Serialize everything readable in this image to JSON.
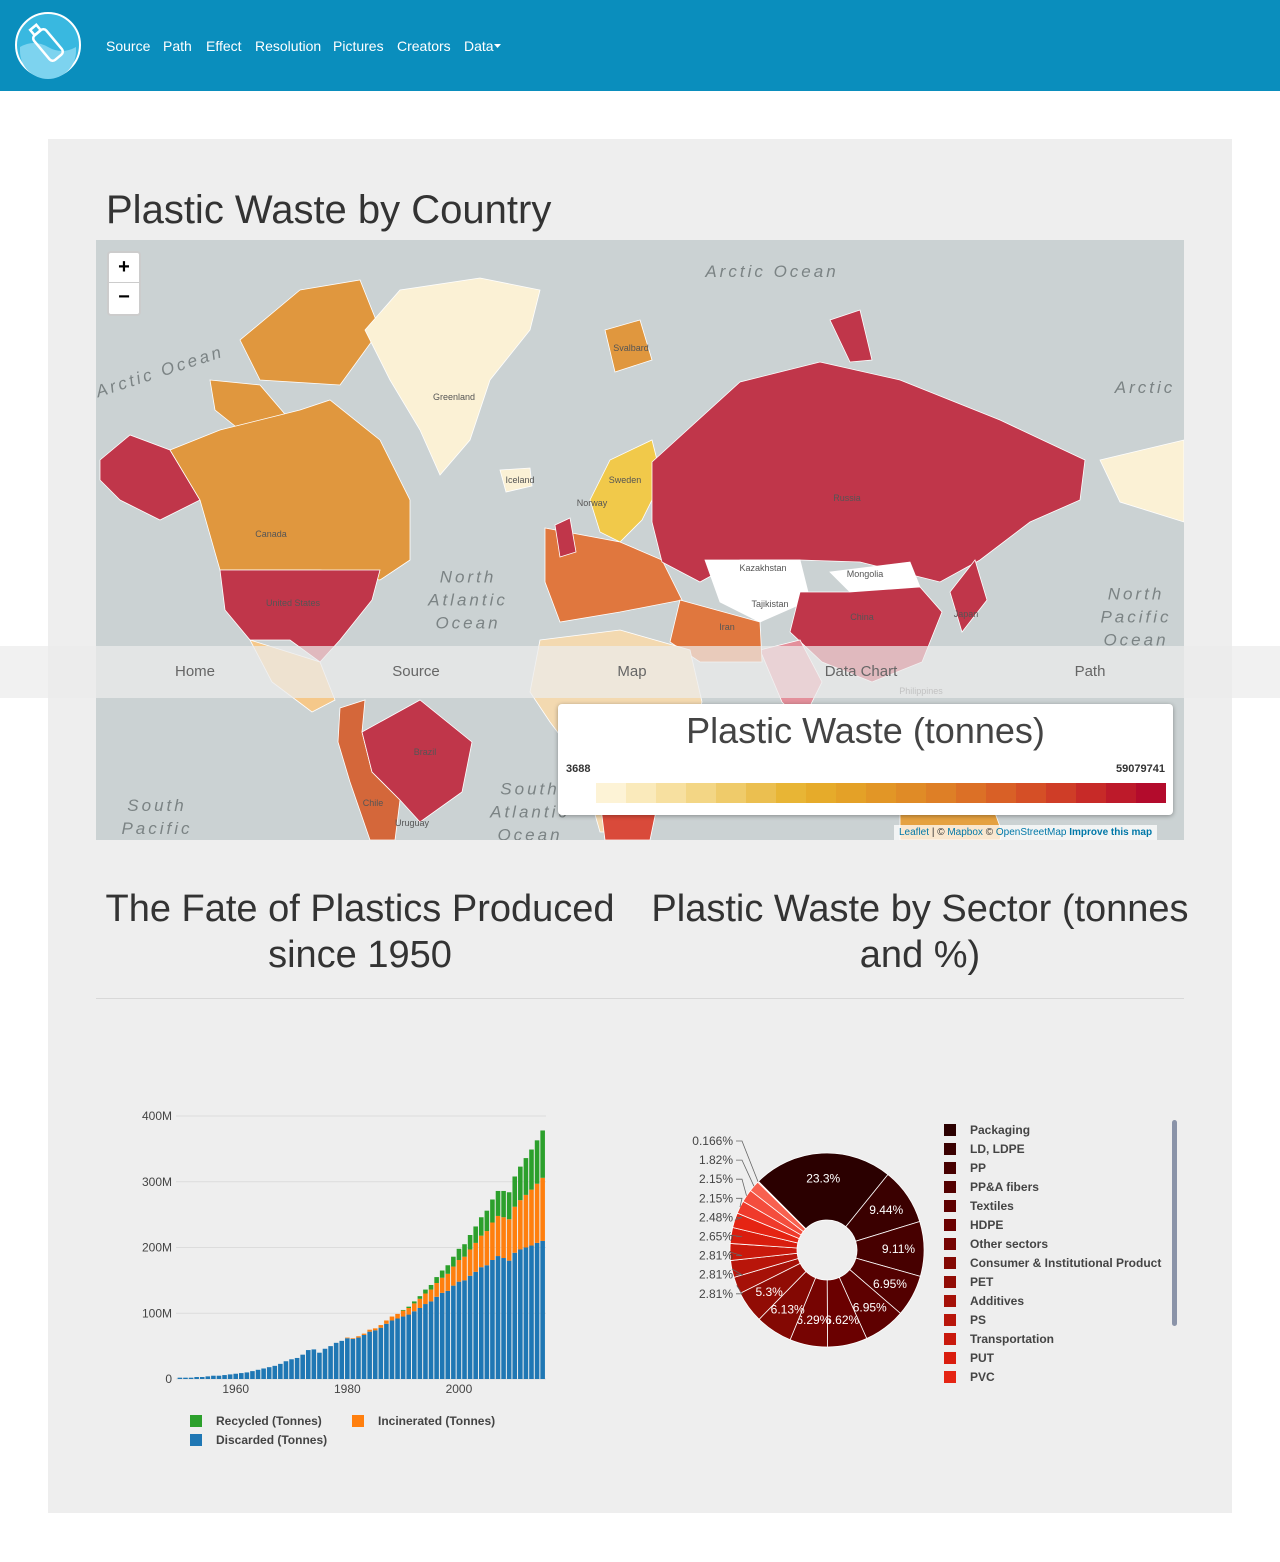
{
  "nav": {
    "items": [
      "Source",
      "Path",
      "Effect",
      "Resolution",
      "Pictures",
      "Creators",
      "Data"
    ]
  },
  "map": {
    "title": "Plastic Waste by Country",
    "zoom": {
      "in": "+",
      "out": "−"
    },
    "labels": [
      "Arctic Ocean",
      "Arctic Ocean",
      "Arctic",
      "Greenland",
      "Iceland",
      "Svalbard",
      "Norway",
      "Sweden",
      "Russia",
      "Kazakhstan",
      "Mongolia",
      "Tajikistan",
      "China",
      "Iran",
      "Japan",
      "Philippines",
      "Canada",
      "United States",
      "Brazil",
      "Chile",
      "Uruguay",
      "North Atlantic Ocean",
      "North Pacific Ocean",
      "South Atlantic Ocean",
      "South Pacific"
    ],
    "legend": {
      "title": "Plastic Waste (tonnes)",
      "min": 3688,
      "max": 59079741,
      "colors": [
        "#ffffff",
        "#fdf3d6",
        "#faeabb",
        "#f7e0a0",
        "#f3d685",
        "#efcb6a",
        "#ebbf50",
        "#e8b535",
        "#e6ab2a",
        "#e4a127",
        "#e29626",
        "#e08b26",
        "#de7f26",
        "#dc7026",
        "#d96026",
        "#d54f26",
        "#cf3d27",
        "#c72a28",
        "#bd1a2a",
        "#b30b2c"
      ]
    },
    "attribution": [
      "Leaflet",
      "| ©",
      "Mapbox",
      "©",
      "OpenStreetMap",
      "Improve this map"
    ]
  },
  "overlay_nav": {
    "items": [
      "Home",
      "Source",
      "Map",
      "Data Chart",
      "Path"
    ]
  },
  "chart_data": [
    {
      "type": "bar",
      "title": "The Fate of Plastics Produced since 1950",
      "stacked": true,
      "x": [
        1950,
        1951,
        1952,
        1953,
        1954,
        1955,
        1956,
        1957,
        1958,
        1959,
        1960,
        1961,
        1962,
        1963,
        1964,
        1965,
        1966,
        1967,
        1968,
        1969,
        1970,
        1971,
        1972,
        1973,
        1974,
        1975,
        1976,
        1977,
        1978,
        1979,
        1980,
        1981,
        1982,
        1983,
        1984,
        1985,
        1986,
        1987,
        1988,
        1989,
        1990,
        1991,
        1992,
        1993,
        1994,
        1995,
        1996,
        1997,
        1998,
        1999,
        2000,
        2001,
        2002,
        2003,
        2004,
        2005,
        2006,
        2007,
        2008,
        2009,
        2010,
        2011,
        2012,
        2013,
        2014,
        2015
      ],
      "series": [
        {
          "name": "Discarded (Tonnes)",
          "color": "#1f77b4",
          "values": [
            2000000,
            2000000,
            2000000,
            3000000,
            3000000,
            4000000,
            5000000,
            5000000,
            6000000,
            7000000,
            8000000,
            9000000,
            10000000,
            12000000,
            14000000,
            16000000,
            18000000,
            20000000,
            23000000,
            27000000,
            30000000,
            32000000,
            37000000,
            44000000,
            45000000,
            40000000,
            46000000,
            50000000,
            55000000,
            58000000,
            62000000,
            61000000,
            63000000,
            67000000,
            72000000,
            74000000,
            78000000,
            84000000,
            89000000,
            92000000,
            95000000,
            98000000,
            103000000,
            108000000,
            114000000,
            118000000,
            125000000,
            131000000,
            134000000,
            142000000,
            148000000,
            150000000,
            157000000,
            163000000,
            170000000,
            173000000,
            181000000,
            187000000,
            184000000,
            180000000,
            192000000,
            197000000,
            200000000,
            203000000,
            207000000,
            210000000
          ]
        },
        {
          "name": "Incinerated (Tonnes)",
          "color": "#ff7f0e",
          "values": [
            0,
            0,
            0,
            0,
            0,
            0,
            0,
            0,
            0,
            0,
            0,
            0,
            0,
            0,
            0,
            0,
            0,
            0,
            0,
            0,
            0,
            0,
            0,
            0,
            0,
            0,
            0,
            0,
            0,
            0,
            1000000,
            1000000,
            2000000,
            2000000,
            3000000,
            3000000,
            4000000,
            5000000,
            6000000,
            7000000,
            9000000,
            10000000,
            12000000,
            14000000,
            16000000,
            18000000,
            21000000,
            23000000,
            26000000,
            29000000,
            33000000,
            36000000,
            40000000,
            44000000,
            48000000,
            52000000,
            57000000,
            61000000,
            62000000,
            63000000,
            70000000,
            75000000,
            80000000,
            85000000,
            90000000,
            96000000
          ]
        },
        {
          "name": "Recycled (Tonnes)",
          "color": "#2ca02c",
          "values": [
            0,
            0,
            0,
            0,
            0,
            0,
            0,
            0,
            0,
            0,
            0,
            0,
            0,
            0,
            0,
            0,
            0,
            0,
            0,
            0,
            0,
            0,
            0,
            0,
            0,
            0,
            0,
            0,
            0,
            0,
            0,
            0,
            0,
            0,
            0,
            0,
            0,
            0,
            0,
            0,
            1000000,
            2000000,
            3000000,
            4000000,
            6000000,
            7000000,
            9000000,
            11000000,
            13000000,
            15000000,
            17000000,
            19000000,
            22000000,
            25000000,
            28000000,
            31000000,
            35000000,
            38000000,
            40000000,
            41000000,
            46000000,
            51000000,
            56000000,
            61000000,
            66000000,
            72000000
          ]
        }
      ],
      "xlim": [
        1949.3,
        2015.6
      ],
      "xticks": [
        1960,
        1980,
        2000
      ],
      "ylim": [
        0,
        400000000
      ],
      "yticks": [
        0,
        {
          "value": 100000000,
          "label": "100M"
        },
        {
          "value": 200000000,
          "label": "200M"
        },
        {
          "value": 300000000,
          "label": "300M"
        },
        {
          "value": 400000000,
          "label": "400M"
        }
      ],
      "grid": true
    },
    {
      "type": "pie",
      "title": "Plastic Waste by Sector (tonnes and %)",
      "categories": [
        "Packaging",
        "LD, LDPE",
        "PP",
        "PP&A fibers",
        "Textiles",
        "HDPE",
        "Other sectors",
        "Consumer & Institutional Product",
        "PET",
        "Additives",
        "PS",
        "Transportation",
        "PUT",
        "PVC",
        null,
        null,
        null,
        null
      ],
      "values": [
        23.3,
        9.44,
        9.11,
        6.95,
        6.95,
        6.62,
        6.29,
        6.13,
        5.3,
        2.81,
        2.81,
        2.81,
        2.65,
        2.48,
        2.15,
        2.15,
        1.82,
        0.166
      ],
      "value_labels": [
        "23.3%",
        "9.44%",
        "9.11%",
        "6.95%",
        "6.95%",
        "6.62%",
        "6.29%",
        "6.13%",
        "5.3%",
        "2.81%",
        "2.81%",
        "2.81%",
        "2.65%",
        "2.48%",
        "2.15%",
        "2.15%",
        "1.82%",
        "0.166%"
      ],
      "colors": [
        "#2b0000",
        "#3a0000",
        "#470000",
        "#530000",
        "#5e0000",
        "#6a0000",
        "#760402",
        "#830803",
        "#910c05",
        "#a61108",
        "#b8150a",
        "#c9190c",
        "#d91d0e",
        "#e52413",
        "#ef3a2b",
        "#f44d3d",
        "#f8614f",
        "#fb7766"
      ]
    }
  ]
}
